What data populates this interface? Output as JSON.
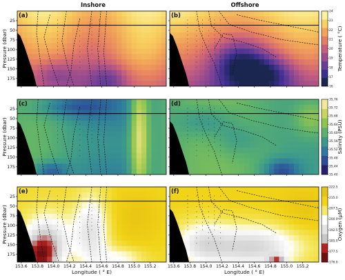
{
  "figure": {
    "section_titles": [
      "Inshore",
      "Offshore"
    ]
  },
  "chart_data": [
    {
      "type": "heatmap",
      "panel": "(a)",
      "variable": "Temperature",
      "section": "Inshore",
      "ylabel": "Pressure (dbar)",
      "xlim": [
        153.55,
        155.4
      ],
      "ylim": [
        195,
        0
      ],
      "y_ticks": [
        25,
        50,
        75,
        100,
        125,
        150,
        175
      ],
      "colormap": [
        "#1b2650",
        "#3b2f8e",
        "#6a3f97",
        "#9c4d8d",
        "#c8607c",
        "#e57f62",
        "#f2a659",
        "#f8d260",
        "#fbf3a0"
      ],
      "vmin": 16,
      "vmax": 24,
      "mixed_layer_line_pressure": 37
    },
    {
      "type": "heatmap",
      "panel": "(b)",
      "variable": "Temperature",
      "section": "Offshore",
      "xlim": [
        153.55,
        155.4
      ],
      "ylim": [
        195,
        0
      ],
      "colorbar": {
        "label": "Temperature ( °C)",
        "ticks": [
          "16",
          "17",
          "18",
          "19",
          "20",
          "21",
          "22",
          "23",
          "24"
        ]
      },
      "mixed_layer_line_pressure": 37
    },
    {
      "type": "heatmap",
      "panel": "(c)",
      "variable": "Salinity",
      "section": "Inshore",
      "ylabel": "Pressure (dbar)",
      "xlim": [
        153.55,
        155.4
      ],
      "ylim": [
        195,
        0
      ],
      "y_ticks": [
        25,
        50,
        75,
        100,
        125,
        150,
        175
      ],
      "colormap": [
        "#2a1f6e",
        "#2e4d96",
        "#2f7a9d",
        "#3c9a8c",
        "#5bb16d",
        "#8fc552",
        "#c8d560",
        "#f1ea9b"
      ],
      "vmin": 35.4,
      "vmax": 35.76,
      "mixed_layer_line_pressure": 37
    },
    {
      "type": "heatmap",
      "panel": "(d)",
      "variable": "Salinity",
      "section": "Offshore",
      "xlim": [
        153.55,
        155.4
      ],
      "ylim": [
        195,
        0
      ],
      "colorbar": {
        "label": "Salinity (PSU)",
        "ticks": [
          "35.40",
          "35.44",
          "35.48",
          "35.52",
          "35.56",
          "35.60",
          "35.64",
          "35.68",
          "35.72",
          "35.76"
        ]
      },
      "mixed_layer_line_pressure": 37
    },
    {
      "type": "heatmap",
      "panel": "(e)",
      "variable": "Oxygen",
      "section": "Inshore",
      "ylabel": "Pressure (dbar)",
      "xlabel": "Longitude ( ° E)",
      "xlim": [
        153.55,
        155.4
      ],
      "ylim": [
        195,
        0
      ],
      "y_ticks": [
        25,
        50,
        75,
        100,
        125,
        150,
        175
      ],
      "x_ticks": [
        "153.6",
        "153.8",
        "154.0",
        "154.2",
        "154.4",
        "154.6",
        "154.8",
        "155.0",
        "155.2"
      ],
      "x_tick_values": [
        153.6,
        153.8,
        154.0,
        154.2,
        154.4,
        154.6,
        154.8,
        155.0,
        155.2
      ],
      "colormap": [
        "#6f0f0f",
        "#b52222",
        "#c8c8c8",
        "#e4e4e4",
        "#ffffff",
        "#f5e96a",
        "#f1d418",
        "#e8c312"
      ],
      "vmin": 176.0,
      "vmax": 222.5,
      "mixed_layer_line_pressure": 37
    },
    {
      "type": "heatmap",
      "panel": "(f)",
      "variable": "Oxygen",
      "section": "Offshore",
      "xlabel": "Longitude ( ° E)",
      "xlim": [
        153.55,
        155.4
      ],
      "ylim": [
        195,
        0
      ],
      "x_ticks": [
        "153.6",
        "153.8",
        "154.0",
        "154.2",
        "154.4",
        "154.6",
        "154.8",
        "155.0",
        "155.2"
      ],
      "x_tick_values": [
        153.6,
        153.8,
        154.0,
        154.2,
        154.4,
        154.6,
        154.8,
        155.0,
        155.2
      ],
      "colorbar": {
        "label": "Oxygen (μM)",
        "ticks": [
          "176.0",
          "177.5",
          "185.0",
          "192.5",
          "200.0",
          "207.5",
          "215.0",
          "222.5"
        ]
      },
      "mixed_layer_line_pressure": 37
    }
  ]
}
